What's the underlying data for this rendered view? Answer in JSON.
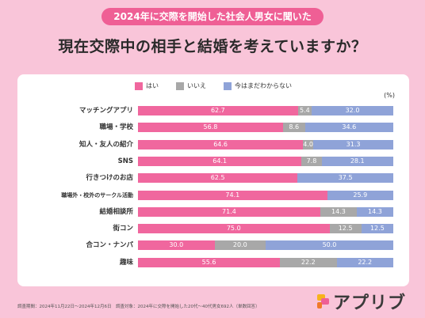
{
  "header": {
    "subtitle": "2024年に交際を開始した社会人男女に聞いた",
    "title": "現在交際中の相手と結婚を考えていますか？"
  },
  "chart_data": {
    "type": "bar",
    "orientation": "horizontal-stacked-100",
    "unit_label": "(%)",
    "categories": [
      "マッチングアプリ",
      "職場・学校",
      "知人・友人の紹介",
      "SNS",
      "行きつけのお店",
      "職場外・校外のサークル活動",
      "結婚相談所",
      "街コン",
      "合コン・ナンパ",
      "趣味"
    ],
    "series": [
      {
        "name": "はい",
        "color": "#f0679e",
        "values": [
          62.7,
          56.8,
          64.6,
          64.1,
          62.5,
          74.1,
          71.4,
          75.0,
          30.0,
          55.6
        ]
      },
      {
        "name": "いいえ",
        "color": "#a8a8a8",
        "values": [
          5.4,
          8.6,
          4.0,
          7.8,
          0,
          0,
          14.3,
          12.5,
          20.0,
          22.2
        ]
      },
      {
        "name": "今はまだわからない",
        "color": "#8fa3d8",
        "values": [
          32.0,
          34.6,
          31.3,
          28.1,
          37.5,
          25.9,
          14.3,
          12.5,
          50.0,
          22.2
        ]
      }
    ],
    "legend_position": "top-center"
  },
  "footer": {
    "note": "調査期間：2024年11月22日〜2024年12月6日　調査対象：2024年に交際を開始した20代〜40代男女692人（単数回答）"
  },
  "brand": {
    "name": "アプリブ"
  },
  "colors": {
    "background": "#f9c5d9",
    "accent": "#ef5f95"
  }
}
